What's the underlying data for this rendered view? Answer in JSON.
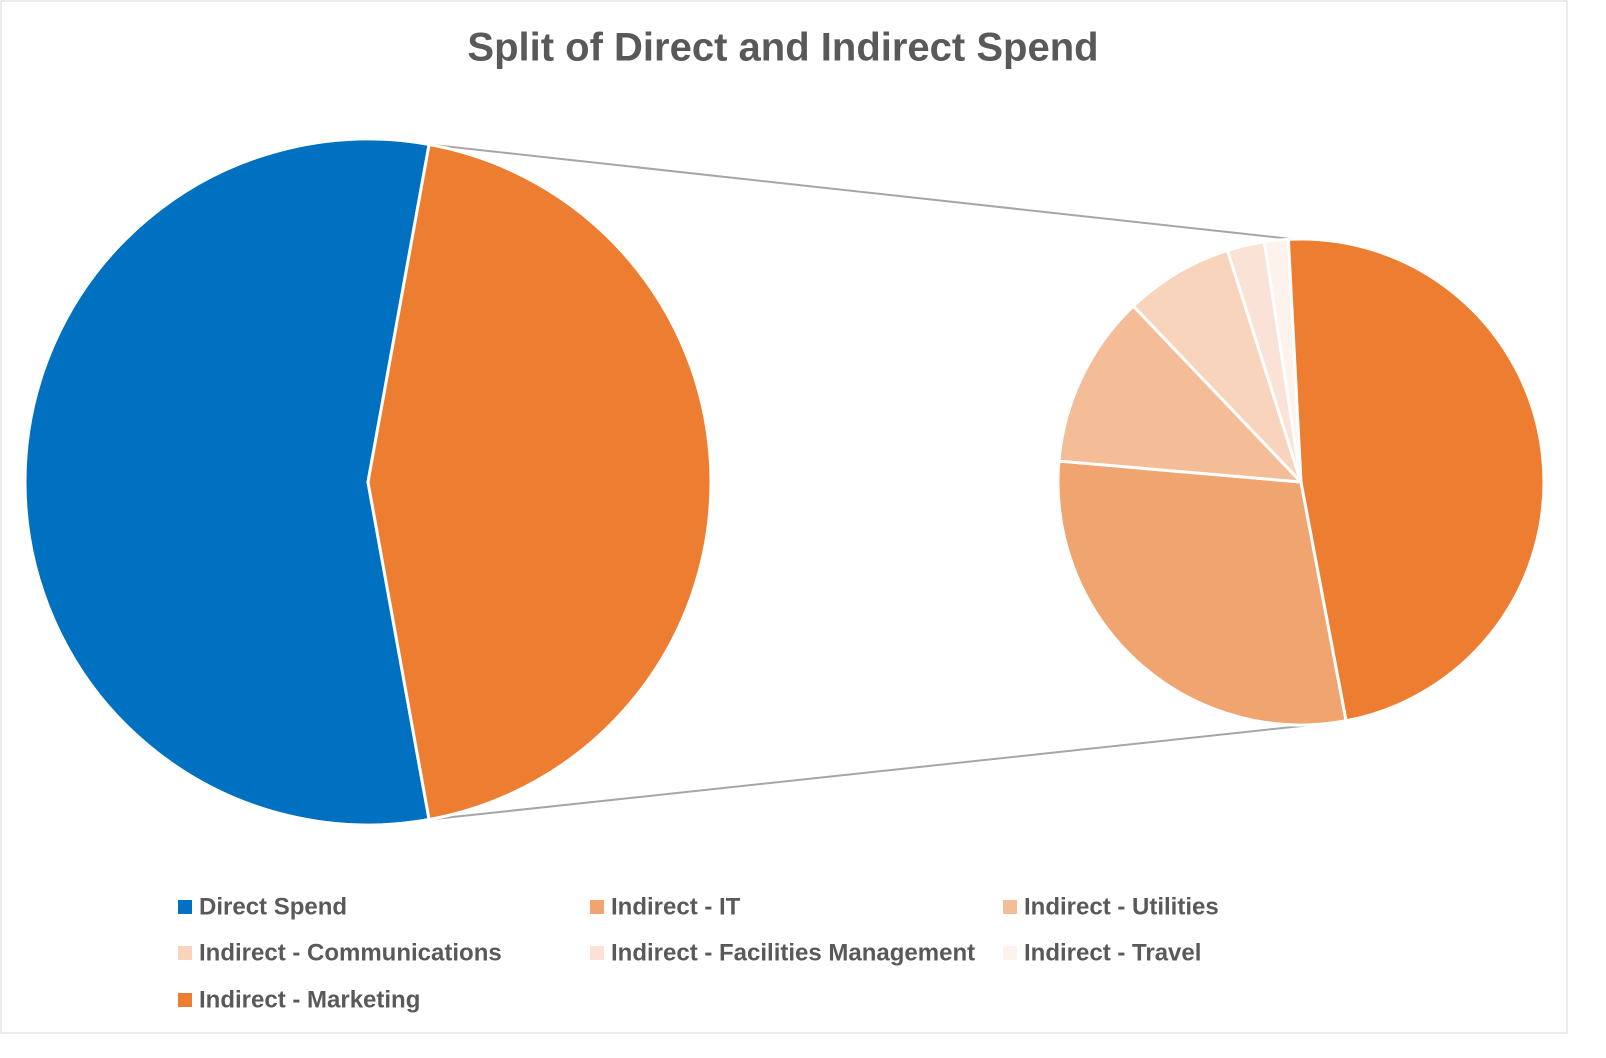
{
  "chart_data": {
    "type": "pie",
    "title": "Split of Direct and Indirect Spend",
    "categories": [
      "Direct Spend",
      "Indirect - IT",
      "Indirect - Utilities",
      "Indirect - Communications",
      "Indirect - Facilities Management",
      "Indirect - Travel",
      "Indirect - Marketing"
    ],
    "values": [
      55.7,
      13.0,
      5.1,
      3.2,
      1.1,
      0.7,
      21.2
    ],
    "colors": [
      "#0070C0",
      "#F0A571",
      "#F4BD98",
      "#F8D4BC",
      "#FAE3D6",
      "#FDF2EC",
      "#ED7D31"
    ]
  }
}
